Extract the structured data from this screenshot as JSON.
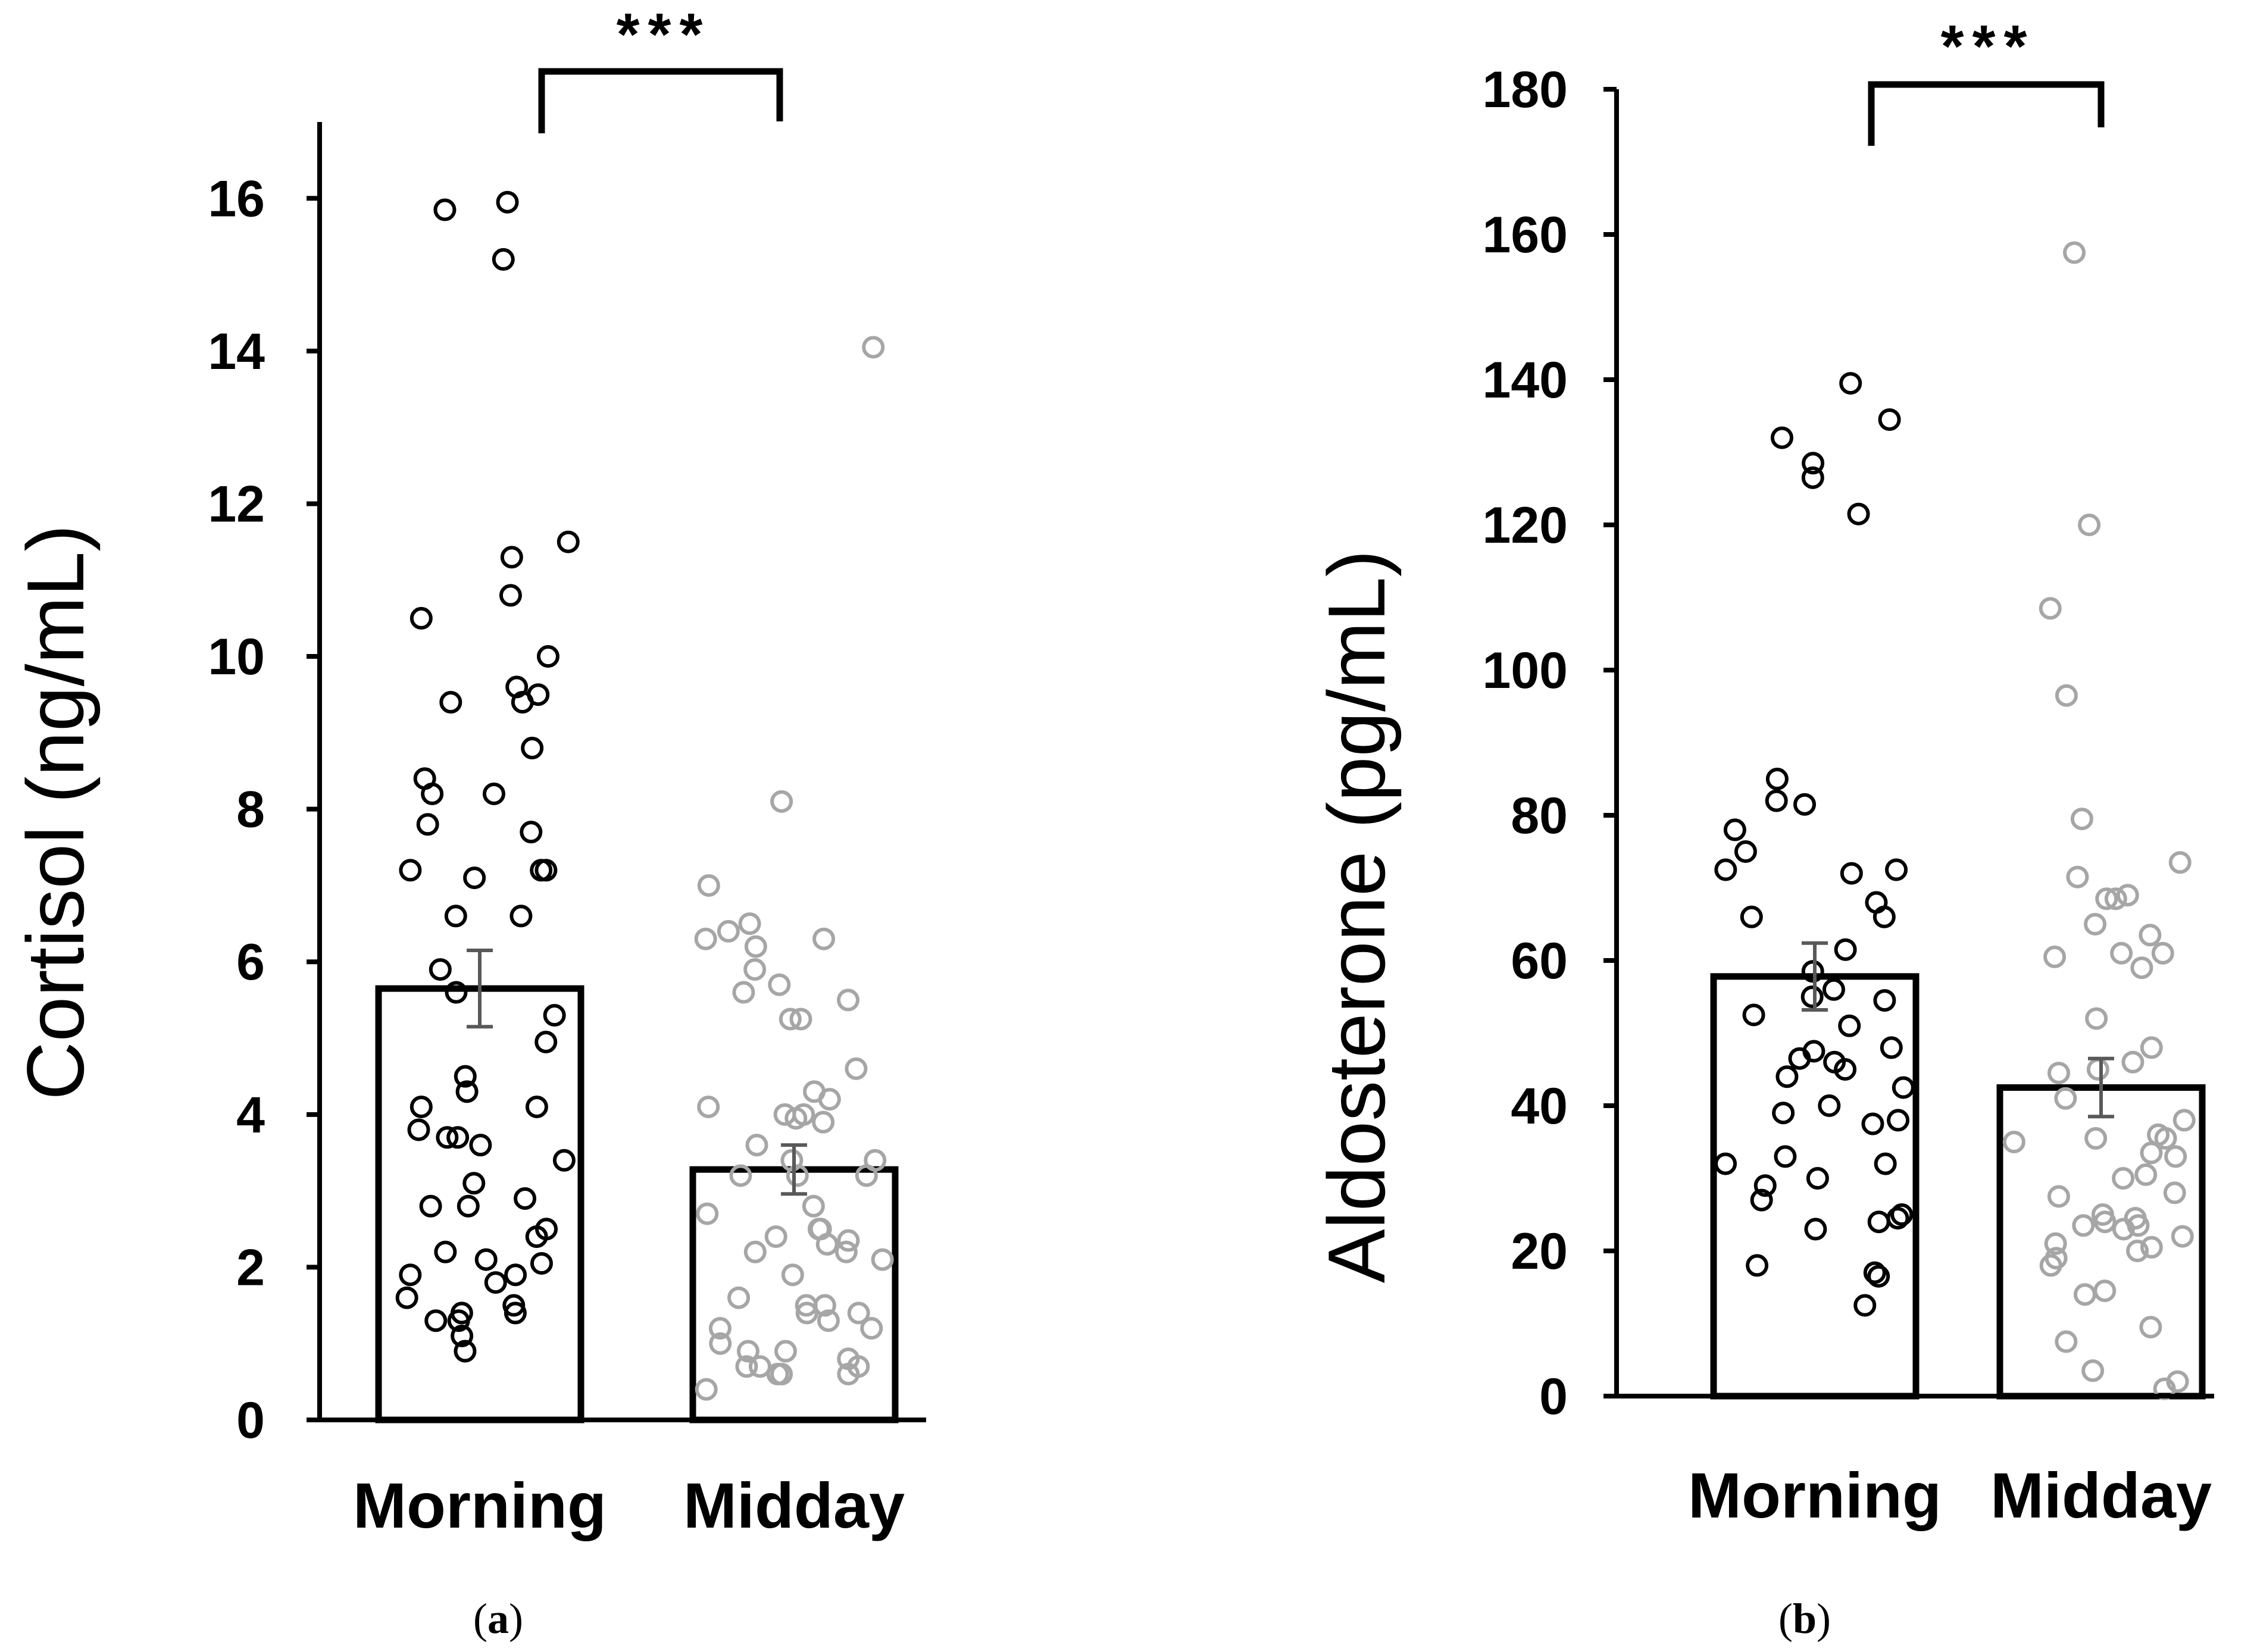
{
  "colors": {
    "morning": "#000000",
    "midday": "#a6a6a6",
    "axis": "#000000",
    "errorbar": "#595959"
  },
  "chart_data": [
    {
      "type": "bar",
      "panel": "a",
      "ylabel": "Cortisol (ng/mL)",
      "ylim": [
        0,
        17
      ],
      "yticks": [
        0,
        2,
        4,
        6,
        8,
        10,
        12,
        14,
        16
      ],
      "yticklabels": [
        "0",
        "2",
        "4",
        "6",
        "8",
        "10",
        "12",
        "14",
        "16"
      ],
      "categories": [
        "Morning",
        "Midday"
      ],
      "values": [
        5.65,
        3.28
      ],
      "errors": [
        0.5,
        0.32
      ],
      "significance": "***",
      "points": [
        [
          15.95,
          15.85,
          15.2,
          11.5,
          11.3,
          10.8,
          10.5,
          10.0,
          9.6,
          9.5,
          9.4,
          9.4,
          8.8,
          8.4,
          8.2,
          8.2,
          7.8,
          7.7,
          7.2,
          7.2,
          7.2,
          7.1,
          6.6,
          6.6,
          5.9,
          5.6,
          5.3,
          4.95,
          4.5,
          4.3,
          4.1,
          4.1,
          3.8,
          3.7,
          3.7,
          3.6,
          3.4,
          3.1,
          2.9,
          2.8,
          2.8,
          2.5,
          2.4,
          2.2,
          2.1,
          2.05,
          1.9,
          1.9,
          1.8,
          1.6,
          1.5,
          1.4,
          1.4,
          1.3,
          1.3,
          1.1,
          0.9
        ],
        [
          14.05,
          8.1,
          7.0,
          6.5,
          6.4,
          6.3,
          6.3,
          6.2,
          5.9,
          5.7,
          5.6,
          5.5,
          5.25,
          5.25,
          4.6,
          4.3,
          4.2,
          4.1,
          4.0,
          4.0,
          3.95,
          3.9,
          3.6,
          3.4,
          3.4,
          3.2,
          3.2,
          3.2,
          2.8,
          2.7,
          2.5,
          2.5,
          2.4,
          2.35,
          2.3,
          2.2,
          2.2,
          2.1,
          1.9,
          1.6,
          1.5,
          1.5,
          1.4,
          1.4,
          1.3,
          1.2,
          1.2,
          1.0,
          0.9,
          0.9,
          0.8,
          0.7,
          0.7,
          0.7,
          0.6,
          0.6,
          0.6,
          0.4
        ]
      ]
    },
    {
      "type": "bar",
      "panel": "b",
      "ylabel": "Aldosterone (pg/mL)",
      "ylim": [
        0,
        180
      ],
      "yticks": [
        0,
        20,
        40,
        60,
        80,
        100,
        120,
        140,
        160,
        180
      ],
      "yticklabels": [
        "0",
        "20",
        "40",
        "60",
        "80",
        "100",
        "120",
        "140",
        "160",
        "180"
      ],
      "categories": [
        "Morning",
        "Midday"
      ],
      "values": [
        57.8,
        42.5
      ],
      "errors": [
        4.6,
        4.0
      ],
      "significance": "***",
      "points": [
        [
          139.5,
          134.5,
          132.0,
          128.5,
          126.5,
          121.5,
          85.0,
          82.0,
          81.5,
          78.0,
          75.0,
          72.5,
          72.5,
          72.0,
          68.0,
          66.0,
          66.0,
          61.5,
          58.5,
          56.0,
          55.0,
          54.5,
          52.5,
          51.0,
          48.0,
          47.5,
          46.5,
          46.0,
          45.0,
          44.0,
          42.5,
          40.0,
          39.0,
          38.0,
          37.5,
          33.0,
          32.0,
          32.0,
          30.0,
          29.0,
          27.0,
          25.0,
          24.5,
          24.0,
          23.0,
          18.0,
          17.0,
          16.5,
          12.5
        ],
        [
          157.5,
          120.0,
          108.5,
          96.5,
          79.5,
          73.5,
          71.5,
          69.0,
          68.5,
          68.5,
          65.0,
          63.5,
          61.0,
          61.0,
          60.5,
          59.0,
          52.0,
          48.0,
          46.0,
          45.0,
          44.5,
          41.0,
          38.0,
          36.0,
          35.5,
          35.5,
          35.0,
          33.5,
          33.0,
          30.5,
          30.0,
          28.0,
          27.5,
          25.0,
          24.5,
          24.0,
          23.5,
          23.5,
          23.0,
          22.0,
          21.0,
          20.5,
          20.0,
          19.0,
          18.0,
          14.5,
          14.0,
          9.5,
          7.5,
          3.5,
          2.0,
          1.0
        ]
      ]
    }
  ],
  "panel_labels": [
    "a",
    "b"
  ]
}
